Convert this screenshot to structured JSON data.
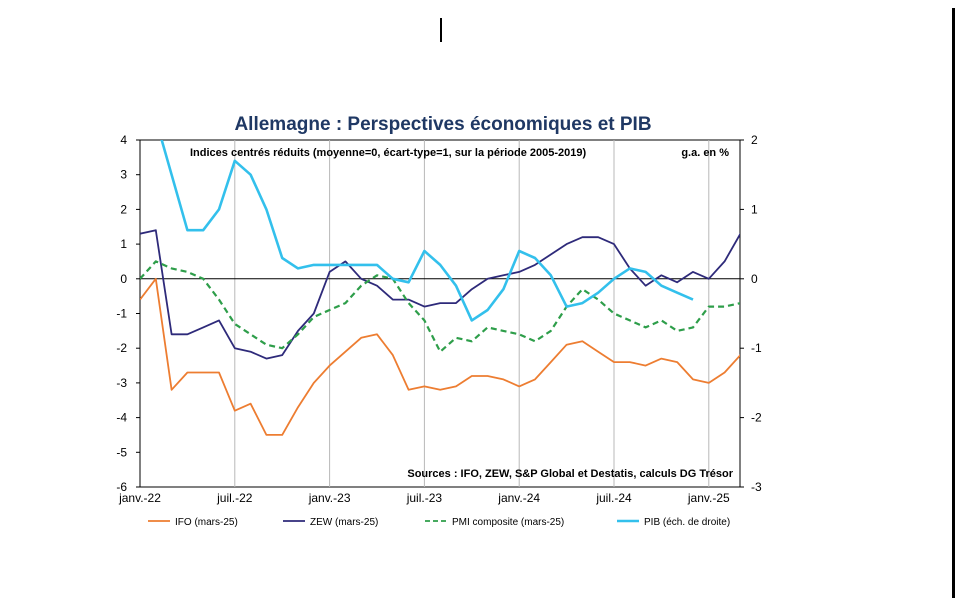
{
  "chart_data": {
    "type": "line",
    "title": "Allemagne : Perspectives économiques et PIB",
    "subtitle": "Indices centrés réduits (moyenne=0, écart-type=1, sur la période 2005-2019)",
    "right_unit": "g.a. en %",
    "source": "Sources : IFO, ZEW, S&P Global et Destatis, calculs DG Trésor",
    "x_start": "2022-01",
    "x_ticks": [
      "janv.-22",
      "juil.-22",
      "janv.-23",
      "juil.-23",
      "janv.-24",
      "juil.-24",
      "janv.-25"
    ],
    "left_axis": {
      "ylim": [
        -6,
        4
      ],
      "ticks": [
        "4",
        "3",
        "2",
        "1",
        "0",
        "-1",
        "-2",
        "-3",
        "-4",
        "-5",
        "-6"
      ]
    },
    "right_axis": {
      "ylim": [
        -3,
        2
      ],
      "ticks": [
        "2",
        "1",
        "0",
        "-1",
        "-2",
        "-3"
      ]
    },
    "grid": "vertical",
    "legend_position": "bottom",
    "series": [
      {
        "name": "IFO (mars-25)",
        "axis": "left",
        "color": "#ed7d31",
        "dash": "",
        "values": [
          -0.6,
          0.0,
          -3.2,
          -2.7,
          -2.7,
          -2.7,
          -3.8,
          -3.6,
          -4.5,
          -4.5,
          -3.7,
          -3.0,
          -2.5,
          -2.1,
          -1.7,
          -1.6,
          -2.2,
          -3.2,
          -3.1,
          -3.2,
          -3.1,
          -2.8,
          -2.8,
          -2.9,
          -3.1,
          -2.9,
          -2.4,
          -1.9,
          -1.8,
          -2.1,
          -2.4,
          -2.4,
          -2.5,
          -2.3,
          -2.4,
          -2.9,
          -3.0,
          -2.7,
          -2.2
        ]
      },
      {
        "name": "ZEW (mars-25)",
        "axis": "left",
        "color": "#2e2a7a",
        "dash": "",
        "values": [
          1.3,
          1.4,
          -1.6,
          -1.6,
          -1.4,
          -1.2,
          -2.0,
          -2.1,
          -2.3,
          -2.2,
          -1.5,
          -1.0,
          0.2,
          0.5,
          0.0,
          -0.2,
          -0.6,
          -0.6,
          -0.8,
          -0.7,
          -0.7,
          -0.3,
          0.0,
          0.1,
          0.2,
          0.4,
          0.7,
          1.0,
          1.2,
          1.2,
          1.0,
          0.3,
          -0.2,
          0.1,
          -0.1,
          0.2,
          0.0,
          0.5,
          1.3
        ]
      },
      {
        "name": "PMI composite (mars-25)",
        "axis": "left",
        "color": "#2e9e4a",
        "dash": "6,4",
        "values": [
          0.0,
          0.5,
          0.3,
          0.2,
          0.0,
          -0.6,
          -1.3,
          -1.6,
          -1.9,
          -2.0,
          -1.6,
          -1.1,
          -0.9,
          -0.7,
          -0.2,
          0.1,
          0.0,
          -0.7,
          -1.2,
          -2.1,
          -1.7,
          -1.8,
          -1.4,
          -1.5,
          -1.6,
          -1.8,
          -1.5,
          -0.8,
          -0.3,
          -0.6,
          -1.0,
          -1.2,
          -1.4,
          -1.2,
          -1.5,
          -1.4,
          -0.8,
          -0.8,
          -0.7
        ]
      },
      {
        "name": "PIB (éch. de droite)",
        "axis": "right",
        "color": "#33c0ec",
        "dash": "",
        "values": [
          3.5,
          2.3,
          1.5,
          0.7,
          0.7,
          1.0,
          1.7,
          1.5,
          1.0,
          0.3,
          0.15,
          0.2,
          0.2,
          0.2,
          0.2,
          0.2,
          0.0,
          -0.05,
          0.4,
          0.2,
          -0.1,
          -0.6,
          -0.45,
          -0.15,
          0.4,
          0.3,
          0.05,
          -0.4,
          -0.35,
          -0.2,
          0.0,
          0.15,
          0.1,
          -0.1,
          -0.2,
          -0.3
        ]
      }
    ]
  }
}
